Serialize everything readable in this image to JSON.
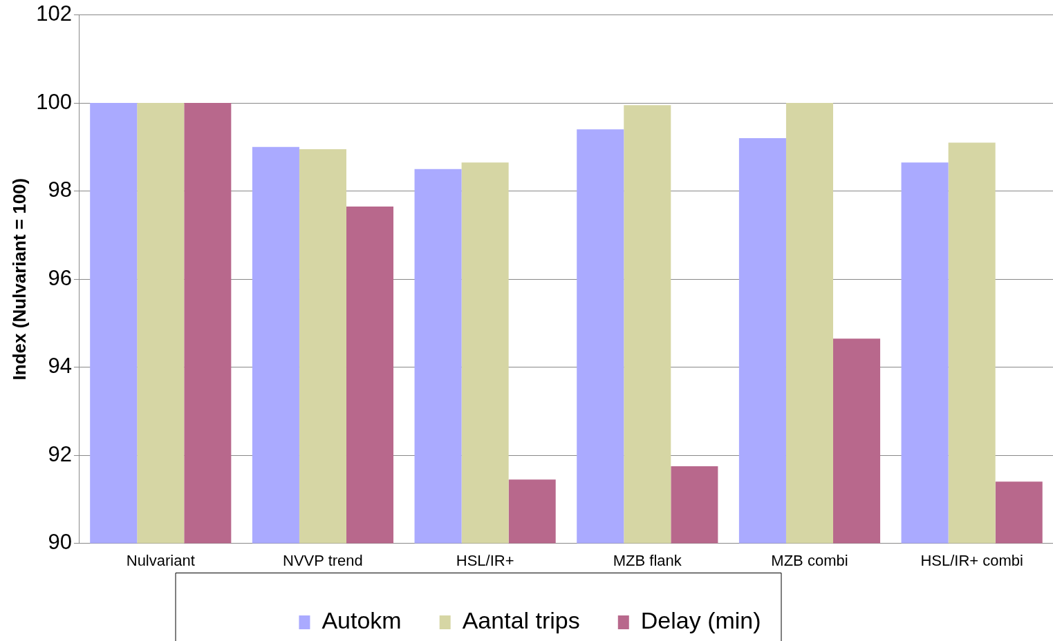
{
  "chart_data": {
    "type": "bar",
    "ylabel": "Index (Nulvariant = 100)",
    "categories": [
      "Nulvariant",
      "NVVP trend",
      "HSL/IR+",
      "MZB flank",
      "MZB combi",
      "HSL/IR+ combi"
    ],
    "series": [
      {
        "name": "Autokm",
        "color": "#aaaaff",
        "values": [
          100,
          99.0,
          98.5,
          99.4,
          99.2,
          98.65
        ]
      },
      {
        "name": "Aantal trips",
        "color": "#d6d6a4",
        "values": [
          100,
          98.95,
          98.65,
          99.95,
          100,
          99.1
        ]
      },
      {
        "name": "Delay (min)",
        "color": "#b8688c",
        "values": [
          100,
          97.65,
          91.45,
          91.75,
          94.65,
          91.4
        ]
      }
    ],
    "ylim": [
      90,
      102
    ],
    "yticks": [
      90,
      92,
      94,
      96,
      98,
      100,
      102
    ],
    "grid": "y",
    "legend": "bottom"
  }
}
